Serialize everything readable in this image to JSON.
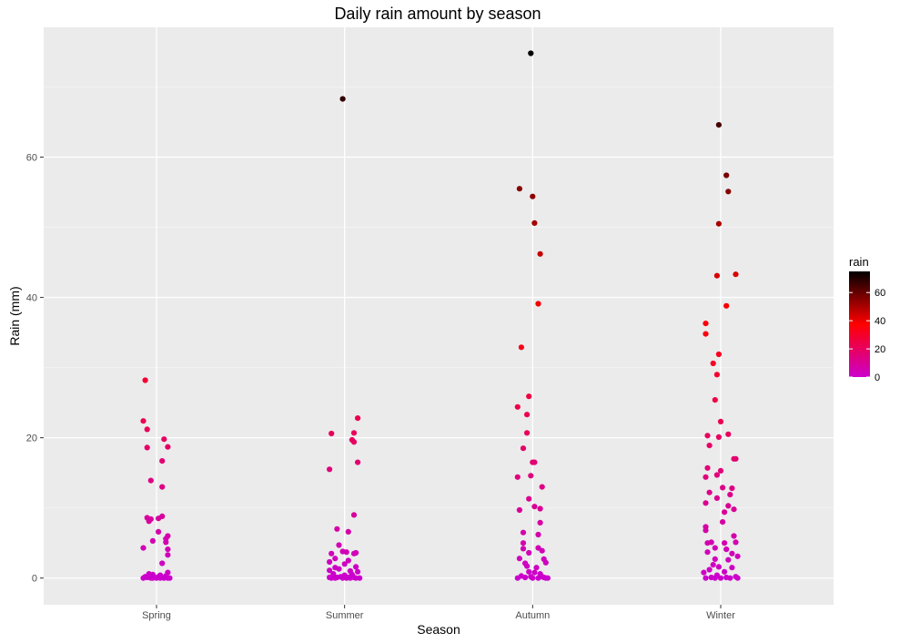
{
  "chart_data": {
    "type": "scatter",
    "title": "Daily rain amount by season",
    "xlabel": "Season",
    "ylabel": "Rain (mm)",
    "categories": [
      "Spring",
      "Summer",
      "Autumn",
      "Winter"
    ],
    "ylim": [
      -3.8,
      78.5
    ],
    "yticks": [
      0,
      20,
      40,
      60
    ],
    "grid": true,
    "legend": {
      "title": "rain",
      "position": "right",
      "ticks": [
        0,
        20,
        40,
        60
      ],
      "range": [
        0,
        75
      ],
      "colors": [
        "#cc00cc",
        "#ff0000",
        "#000000"
      ]
    },
    "series": [
      {
        "category": "Spring",
        "points": [
          [
            -0.06,
            28.2
          ],
          [
            -0.07,
            22.4
          ],
          [
            -0.05,
            21.2
          ],
          [
            0.04,
            19.8
          ],
          [
            0.06,
            18.7
          ],
          [
            -0.05,
            18.6
          ],
          [
            0.03,
            16.7
          ],
          [
            -0.03,
            13.9
          ],
          [
            0.03,
            13.0
          ],
          [
            0.03,
            8.8
          ],
          [
            -0.05,
            8.6
          ],
          [
            0.01,
            8.5
          ],
          [
            -0.03,
            8.4
          ],
          [
            -0.04,
            8.1
          ],
          [
            0.01,
            6.6
          ],
          [
            0.06,
            6.0
          ],
          [
            0.05,
            5.6
          ],
          [
            0.05,
            5.1
          ],
          [
            -0.02,
            5.3
          ],
          [
            0.06,
            4.1
          ],
          [
            -0.07,
            4.3
          ],
          [
            0.06,
            3.3
          ],
          [
            0.03,
            2.1
          ],
          [
            0.06,
            0.8
          ],
          [
            -0.04,
            0.6
          ],
          [
            0.02,
            0.4
          ],
          [
            -0.02,
            0.5
          ],
          [
            0.05,
            0.3
          ],
          [
            -0.06,
            0.2
          ],
          [
            -0.05,
            0.1
          ],
          [
            -0.03,
            0.0
          ],
          [
            -0.01,
            0.1
          ],
          [
            0.0,
            0.0
          ],
          [
            0.01,
            0.2
          ],
          [
            0.02,
            0.0
          ],
          [
            0.03,
            0.1
          ],
          [
            0.04,
            0.0
          ],
          [
            0.06,
            0.0
          ],
          [
            -0.02,
            0.0
          ],
          [
            0.05,
            0.1
          ],
          [
            -0.07,
            0.0
          ],
          [
            0.07,
            0.0
          ]
        ]
      },
      {
        "category": "Summer",
        "points": [
          [
            -0.01,
            68.3
          ],
          [
            0.07,
            22.8
          ],
          [
            -0.07,
            20.6
          ],
          [
            0.05,
            20.7
          ],
          [
            0.04,
            19.7
          ],
          [
            0.05,
            19.4
          ],
          [
            0.07,
            16.5
          ],
          [
            -0.08,
            15.5
          ],
          [
            0.05,
            9.0
          ],
          [
            -0.04,
            7.0
          ],
          [
            0.02,
            6.6
          ],
          [
            -0.03,
            4.7
          ],
          [
            -0.01,
            3.8
          ],
          [
            0.01,
            3.7
          ],
          [
            -0.07,
            3.5
          ],
          [
            0.06,
            3.6
          ],
          [
            0.05,
            3.5
          ],
          [
            -0.05,
            2.8
          ],
          [
            0.02,
            2.5
          ],
          [
            -0.08,
            2.3
          ],
          [
            0.0,
            2.0
          ],
          [
            0.06,
            1.6
          ],
          [
            -0.05,
            1.5
          ],
          [
            -0.08,
            1.1
          ],
          [
            -0.03,
            1.3
          ],
          [
            0.03,
            1.0
          ],
          [
            0.07,
            0.9
          ],
          [
            -0.06,
            0.6
          ],
          [
            0.04,
            0.5
          ],
          [
            0.0,
            0.4
          ],
          [
            -0.02,
            0.2
          ],
          [
            0.02,
            0.1
          ],
          [
            -0.07,
            0.0
          ],
          [
            -0.05,
            0.0
          ],
          [
            -0.04,
            0.1
          ],
          [
            -0.01,
            0.0
          ],
          [
            0.01,
            0.0
          ],
          [
            0.03,
            0.0
          ],
          [
            0.05,
            0.1
          ],
          [
            0.06,
            0.0
          ],
          [
            0.08,
            0.0
          ],
          [
            -0.08,
            0.1
          ]
        ]
      },
      {
        "category": "Autumn",
        "points": [
          [
            -0.01,
            74.8
          ],
          [
            -0.07,
            55.5
          ],
          [
            0.0,
            54.4
          ],
          [
            0.01,
            50.6
          ],
          [
            0.04,
            46.2
          ],
          [
            0.03,
            39.1
          ],
          [
            -0.06,
            32.9
          ],
          [
            -0.02,
            25.9
          ],
          [
            -0.08,
            24.4
          ],
          [
            -0.03,
            23.3
          ],
          [
            -0.03,
            20.7
          ],
          [
            -0.05,
            18.5
          ],
          [
            0.0,
            16.5
          ],
          [
            0.01,
            16.5
          ],
          [
            -0.08,
            14.4
          ],
          [
            -0.01,
            14.6
          ],
          [
            0.05,
            13.0
          ],
          [
            -0.02,
            11.3
          ],
          [
            0.01,
            10.2
          ],
          [
            -0.07,
            9.7
          ],
          [
            0.04,
            9.9
          ],
          [
            0.04,
            7.9
          ],
          [
            -0.05,
            6.5
          ],
          [
            0.03,
            6.2
          ],
          [
            -0.05,
            5.0
          ],
          [
            0.03,
            4.3
          ],
          [
            -0.05,
            4.2
          ],
          [
            0.05,
            3.9
          ],
          [
            -0.02,
            3.6
          ],
          [
            -0.07,
            2.8
          ],
          [
            0.06,
            2.7
          ],
          [
            0.07,
            2.2
          ],
          [
            -0.04,
            2.1
          ],
          [
            -0.03,
            1.7
          ],
          [
            0.02,
            1.5
          ],
          [
            -0.02,
            0.9
          ],
          [
            0.01,
            0.8
          ],
          [
            0.04,
            0.6
          ],
          [
            -0.06,
            0.3
          ],
          [
            0.05,
            0.2
          ],
          [
            -0.08,
            0.0
          ],
          [
            -0.04,
            0.1
          ],
          [
            0.0,
            0.0
          ],
          [
            0.03,
            0.0
          ],
          [
            0.06,
            0.1
          ],
          [
            0.08,
            0.0
          ],
          [
            -0.01,
            0.2
          ],
          [
            0.07,
            0.0
          ]
        ]
      },
      {
        "category": "Winter",
        "points": [
          [
            -0.01,
            64.6
          ],
          [
            0.03,
            57.4
          ],
          [
            0.04,
            55.1
          ],
          [
            -0.01,
            50.5
          ],
          [
            0.08,
            43.3
          ],
          [
            -0.02,
            43.1
          ],
          [
            0.03,
            38.8
          ],
          [
            -0.08,
            36.3
          ],
          [
            -0.08,
            34.8
          ],
          [
            -0.01,
            31.9
          ],
          [
            -0.04,
            30.6
          ],
          [
            -0.02,
            29.0
          ],
          [
            -0.03,
            25.4
          ],
          [
            0.0,
            22.3
          ],
          [
            0.04,
            20.5
          ],
          [
            -0.07,
            20.3
          ],
          [
            -0.01,
            20.1
          ],
          [
            -0.06,
            18.9
          ],
          [
            0.07,
            17.0
          ],
          [
            0.08,
            17.0
          ],
          [
            -0.07,
            15.7
          ],
          [
            0.0,
            15.3
          ],
          [
            -0.02,
            14.7
          ],
          [
            -0.08,
            14.4
          ],
          [
            0.06,
            12.8
          ],
          [
            -0.06,
            12.2
          ],
          [
            0.01,
            12.9
          ],
          [
            0.05,
            11.9
          ],
          [
            -0.02,
            11.4
          ],
          [
            -0.08,
            10.7
          ],
          [
            0.04,
            10.3
          ],
          [
            0.07,
            9.8
          ],
          [
            0.02,
            9.4
          ],
          [
            0.01,
            8.0
          ],
          [
            -0.08,
            7.3
          ],
          [
            -0.08,
            6.8
          ],
          [
            0.07,
            6.0
          ],
          [
            -0.05,
            5.1
          ],
          [
            -0.07,
            5.0
          ],
          [
            0.02,
            5.0
          ],
          [
            0.08,
            5.1
          ],
          [
            -0.03,
            4.3
          ],
          [
            0.03,
            4.1
          ],
          [
            -0.07,
            3.7
          ],
          [
            0.06,
            3.5
          ],
          [
            0.09,
            3.1
          ],
          [
            -0.03,
            2.7
          ],
          [
            0.04,
            2.6
          ],
          [
            -0.04,
            1.9
          ],
          [
            -0.01,
            1.6
          ],
          [
            0.06,
            1.5
          ],
          [
            -0.06,
            1.2
          ],
          [
            0.02,
            0.9
          ],
          [
            -0.09,
            0.8
          ],
          [
            -0.02,
            0.4
          ],
          [
            -0.08,
            0.0
          ],
          [
            -0.05,
            0.1
          ],
          [
            -0.03,
            0.0
          ],
          [
            0.0,
            0.0
          ],
          [
            0.03,
            0.1
          ],
          [
            0.05,
            0.0
          ],
          [
            0.08,
            0.2
          ],
          [
            0.09,
            0.0
          ]
        ]
      }
    ]
  }
}
